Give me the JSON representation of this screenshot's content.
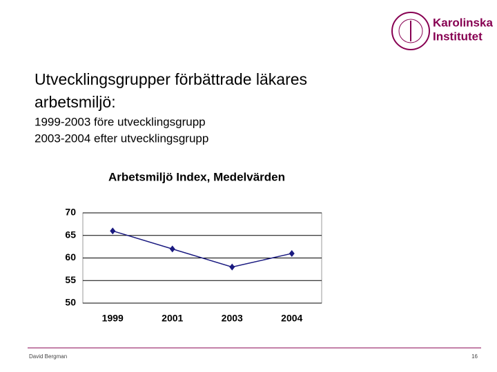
{
  "header": {
    "logo": [
      "Karolinska",
      "Institutet"
    ],
    "title": [
      "Utvecklingsgrupper förbättrade läkares",
      "arbetsmiljö:"
    ],
    "subtitle": [
      "1999-2003 före utvecklingsgrupp",
      "2003-2004 efter utvecklingsgrupp"
    ]
  },
  "chart_data": {
    "type": "line",
    "title": "Arbetsmiljö Index, Medelvärden",
    "categories": [
      "1999",
      "2001",
      "2003",
      "2004"
    ],
    "values": [
      66,
      62,
      58,
      61
    ],
    "color": "#1a1a80",
    "ylim": [
      50,
      70
    ],
    "yticks": [
      50,
      55,
      60,
      65,
      70
    ],
    "grid": true
  },
  "footer": {
    "author": "David Bergman",
    "page": "16"
  }
}
